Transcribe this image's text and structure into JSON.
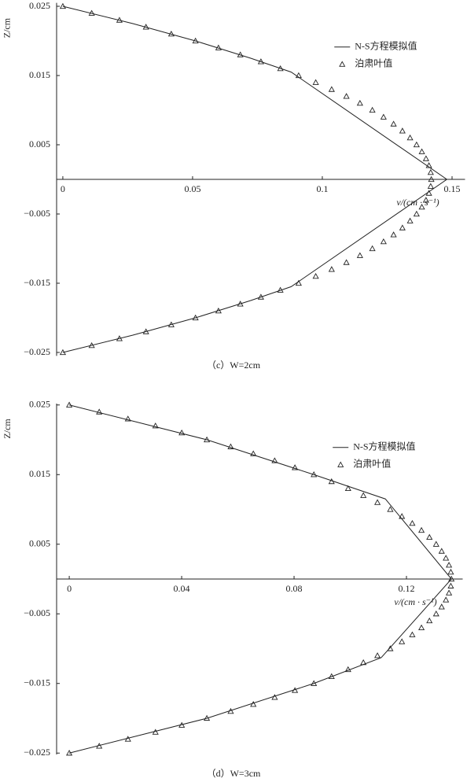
{
  "chart_data": [
    {
      "type": "line",
      "caption": "（c）W=2cm",
      "xlabel": "v/(cm · s⁻¹)",
      "ylabel": "Z/cm",
      "legend": "upper right",
      "xlim": [
        -0.0024,
        0.155
      ],
      "ylim": [
        -0.0255,
        0.0255
      ],
      "xticks": [
        0,
        0.05,
        0.1,
        0.15
      ],
      "yticks": [
        0.025,
        0.015,
        0.005,
        {
          "value": -0.005,
          "label": "−0.005"
        },
        {
          "value": -0.015,
          "label": "−0.015"
        },
        {
          "value": -0.025,
          "label": "−0.025"
        }
      ],
      "series": [
        {
          "name": "N-S方程模拟值",
          "kind": "line",
          "color": "#222222",
          "x": [
            0,
            0.027,
            0.0511,
            0.0724,
            0.088,
            0.148,
            0.088,
            0.0724,
            0.0511,
            0.027,
            0
          ],
          "y": [
            0.025,
            0.0225,
            0.02,
            0.0175,
            0.0155,
            0,
            -0.0155,
            -0.0175,
            -0.02,
            -0.0225,
            -0.025
          ]
        },
        {
          "name": "泊肃叶值",
          "kind": "scatter",
          "color": "#222222",
          "x": [
            0,
            0.01113,
            0.02181,
            0.03204,
            0.0418,
            0.05112,
            0.05998,
            0.06839,
            0.07634,
            0.08384,
            0.09088,
            0.09747,
            0.1036,
            0.10928,
            0.11451,
            0.11928,
            0.1236,
            0.12746,
            0.13087,
            0.13382,
            0.13632,
            0.13836,
            0.13996,
            0.14109,
            0.14177,
            0.142,
            0.14177,
            0.14109,
            0.13996,
            0.13836,
            0.13632,
            0.13382,
            0.13087,
            0.12746,
            0.1236,
            0.11928,
            0.11451,
            0.10928,
            0.1036,
            0.09747,
            0.09088,
            0.08384,
            0.07634,
            0.06839,
            0.05998,
            0.05112,
            0.0418,
            0.03204,
            0.02181,
            0.01113,
            0
          ],
          "y": [
            0.025,
            0.024,
            0.023,
            0.022,
            0.021,
            0.02,
            0.019,
            0.018,
            0.017,
            0.016,
            0.015,
            0.014,
            0.013,
            0.012,
            0.011,
            0.01,
            0.009,
            0.008,
            0.007,
            0.006,
            0.005,
            0.004,
            0.003,
            0.002,
            0.001,
            0,
            -0.001,
            -0.002,
            -0.003,
            -0.004,
            -0.005,
            -0.006,
            -0.007,
            -0.008,
            -0.009,
            -0.01,
            -0.011,
            -0.012,
            -0.013,
            -0.014,
            -0.015,
            -0.016,
            -0.017,
            -0.018,
            -0.019,
            -0.02,
            -0.021,
            -0.022,
            -0.023,
            -0.024,
            -0.025
          ]
        }
      ]
    },
    {
      "type": "line",
      "caption": "（d）W=3cm",
      "xlabel": "v/(cm · s⁻¹)",
      "ylabel": "Z/cm",
      "legend": "upper right",
      "xlim": [
        -0.0045,
        0.14
      ],
      "ylim": [
        -0.0252,
        0.0252
      ],
      "xticks": [
        0,
        0.04,
        0.08,
        0.12
      ],
      "yticks": [
        0.025,
        0.015,
        0.005,
        {
          "value": -0.005,
          "label": "−0.005"
        },
        {
          "value": -0.015,
          "label": "−0.015"
        },
        {
          "value": -0.025,
          "label": "−0.025"
        }
      ],
      "series": [
        {
          "name": "N-S方程模拟值",
          "kind": "line",
          "color": "#222222",
          "x": [
            0,
            0.049,
            0.087,
            0.1125,
            0.136,
            0.111,
            0.087,
            0.049,
            0
          ],
          "y": [
            0.025,
            0.02,
            0.015,
            0.0115,
            0,
            -0.0113,
            -0.015,
            -0.02,
            -0.025
          ]
        },
        {
          "name": "泊肃叶值",
          "kind": "scatter",
          "color": "#222222",
          "x": [
            0,
            0.01066,
            0.02089,
            0.03068,
            0.04004,
            0.04896,
            0.05745,
            0.0655,
            0.07311,
            0.0803,
            0.08704,
            0.09335,
            0.09923,
            0.10467,
            0.10967,
            0.11424,
            0.11837,
            0.12207,
            0.12534,
            0.12817,
            0.13056,
            0.13252,
            0.13404,
            0.13513,
            0.13578,
            0.136,
            0.13578,
            0.13513,
            0.13404,
            0.13252,
            0.13056,
            0.12817,
            0.12534,
            0.12207,
            0.11837,
            0.11424,
            0.10967,
            0.10467,
            0.09923,
            0.09335,
            0.08704,
            0.0803,
            0.07311,
            0.0655,
            0.05745,
            0.04896,
            0.04004,
            0.03068,
            0.02089,
            0.01066,
            0
          ],
          "y": [
            0.025,
            0.024,
            0.023,
            0.022,
            0.021,
            0.02,
            0.019,
            0.018,
            0.017,
            0.016,
            0.015,
            0.014,
            0.013,
            0.012,
            0.011,
            0.01,
            0.009,
            0.008,
            0.007,
            0.006,
            0.005,
            0.004,
            0.003,
            0.002,
            0.001,
            0,
            -0.001,
            -0.002,
            -0.003,
            -0.004,
            -0.005,
            -0.006,
            -0.007,
            -0.008,
            -0.009,
            -0.01,
            -0.011,
            -0.012,
            -0.013,
            -0.014,
            -0.015,
            -0.016,
            -0.017,
            -0.018,
            -0.019,
            -0.02,
            -0.021,
            -0.022,
            -0.023,
            -0.024,
            -0.025
          ]
        }
      ]
    }
  ]
}
